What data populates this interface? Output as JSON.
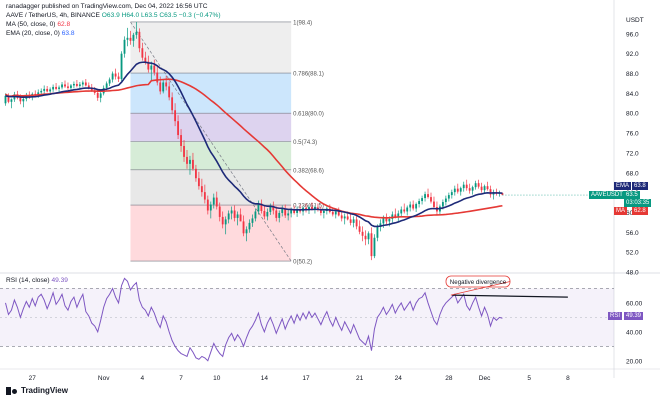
{
  "header": {
    "author_line": "ranadagger published on TradingView.com, Dec 04, 2022 16:56 UTC",
    "symbol_line_prefix": "AAVE / TetherUS, 4h, BINANCE",
    "ohlc": "O63.9  H64.0  L63.5  C63.5  −0.3 (−0.47%)",
    "ma_legend": "MA (50, close, 0)",
    "ma_value": "62.8",
    "ema_legend": "EMA (20, close, 0)",
    "ema_value": "63.8",
    "rsi_legend": "RSI (14, close)",
    "rsi_value": "49.39"
  },
  "logo_text": "TradingView",
  "price_tags": {
    "ema_label": "EMA",
    "ema_value": "63.8",
    "symbol_label": "AAVEUSDT",
    "symbol_value": "63.5",
    "countdown": "03:03:35",
    "ma_label": "MA",
    "ma_value": "62.8",
    "rsi_label": "RSI",
    "rsi_value": "49.39"
  },
  "colors": {
    "up": "#089981",
    "down": "#f23645",
    "ema": "#1e2a78",
    "ma": "#e53935",
    "rsi": "#7e57c2",
    "fib_top": "#bbdefb",
    "fib_mid1": "#d1c4e9",
    "fib_mid2": "#c8e6c9",
    "fib_bottom1": "#e0e0e0",
    "fib_bottom2": "#ffcdd2"
  },
  "chart_data": [
    {
      "type": "candlestick",
      "title": "AAVE / TetherUS, 4h, BINANCE",
      "currency": "USDT",
      "ylim": [
        48,
        100
      ],
      "y_ticks": [
        48.0,
        52.0,
        56.0,
        60.0,
        64.0,
        68.0,
        72.0,
        76.0,
        80.0,
        84.0,
        88.0,
        92.0,
        96.0
      ],
      "x_tick_labels": [
        "27",
        "Nov",
        "4",
        "7",
        "10",
        "14",
        "17",
        "21",
        "24",
        "28",
        "Dec",
        "5",
        "8"
      ],
      "x_tick_index": [
        9,
        33,
        46,
        59,
        71,
        87,
        101,
        119,
        132,
        149,
        161,
        176,
        189
      ],
      "candles": [
        [
          82,
          84,
          81.5,
          83.5
        ],
        [
          83.5,
          84,
          82,
          82.3
        ],
        [
          82.3,
          83,
          81,
          82.8
        ],
        [
          82.8,
          84.3,
          82.3,
          83.8
        ],
        [
          83.8,
          84.5,
          82.8,
          83.1
        ],
        [
          83.1,
          83.8,
          81.8,
          82.4
        ],
        [
          82.4,
          83.2,
          81.2,
          82.9
        ],
        [
          82.9,
          84.1,
          82.4,
          83.6
        ],
        [
          83.6,
          84.4,
          82.9,
          83.2
        ],
        [
          83.2,
          84.2,
          82.6,
          83.9
        ],
        [
          83.9,
          84.6,
          83.2,
          83.6
        ],
        [
          83.6,
          84.8,
          83.1,
          84.2
        ],
        [
          84.2,
          85,
          83.6,
          84.5
        ],
        [
          84.5,
          85.6,
          84,
          84.9
        ],
        [
          84.9,
          85.5,
          84.2,
          84.4
        ],
        [
          84.4,
          85.2,
          83.8,
          84.8
        ],
        [
          84.8,
          85.8,
          84.3,
          85.3
        ],
        [
          85.3,
          86.1,
          84.6,
          84.9
        ],
        [
          84.9,
          85.6,
          84.2,
          85.2
        ],
        [
          85.2,
          86.3,
          84.8,
          85.8
        ],
        [
          85.8,
          86.6,
          85.1,
          85.4
        ],
        [
          85.4,
          86.2,
          84.7,
          85.1
        ],
        [
          85.1,
          85.9,
          84.4,
          85.6
        ],
        [
          85.6,
          86.4,
          85,
          85.9
        ],
        [
          85.9,
          86.7,
          85.2,
          85.5
        ],
        [
          85.5,
          86.3,
          84.9,
          85.8
        ],
        [
          85.8,
          86.6,
          85.3,
          86.2
        ],
        [
          86.2,
          86.9,
          85.4,
          85.6
        ],
        [
          85.6,
          86.2,
          84.8,
          85.2
        ],
        [
          85.2,
          85.9,
          84.3,
          84.6
        ],
        [
          84.6,
          85.3,
          83.7,
          84.1
        ],
        [
          84.1,
          84.7,
          82.5,
          83.1
        ],
        [
          83.1,
          84.4,
          82.2,
          84
        ],
        [
          84,
          85.6,
          83.6,
          85.1
        ],
        [
          85.1,
          86.4,
          84.6,
          86
        ],
        [
          86,
          87.2,
          85.5,
          86.8
        ],
        [
          86.8,
          88.4,
          86.2,
          88
        ],
        [
          88,
          89,
          86.8,
          87.4
        ],
        [
          87.4,
          88.2,
          86.3,
          86.9
        ],
        [
          86.9,
          92.5,
          86.5,
          92
        ],
        [
          92,
          95.5,
          91.2,
          94.8
        ],
        [
          94.8,
          97.2,
          93.5,
          95.2
        ],
        [
          95.2,
          96.6,
          93.8,
          94.6
        ],
        [
          94.6,
          96.2,
          93.4,
          95.8
        ],
        [
          95.8,
          98.4,
          95,
          96.4
        ],
        [
          96.4,
          97.1,
          92.3,
          93.1
        ],
        [
          93.1,
          94.2,
          90.6,
          91.2
        ],
        [
          91.2,
          92.4,
          89.8,
          90.4
        ],
        [
          90.4,
          91.6,
          88.2,
          88.8
        ],
        [
          88.8,
          90.4,
          86.4,
          89.6
        ],
        [
          89.6,
          90.8,
          87.6,
          88.2
        ],
        [
          88.2,
          89.4,
          85.6,
          86.2
        ],
        [
          86.2,
          87.4,
          83.8,
          84.4
        ],
        [
          84.4,
          86.8,
          84,
          86.2
        ],
        [
          86.2,
          87.6,
          84.6,
          85.4
        ],
        [
          85.4,
          86.4,
          82.6,
          83.2
        ],
        [
          83.2,
          84.2,
          79.8,
          80.6
        ],
        [
          80.6,
          82,
          77.4,
          78.4
        ],
        [
          78.4,
          79.6,
          74.8,
          75.6
        ],
        [
          75.6,
          76.8,
          72.2,
          73.4
        ],
        [
          73.4,
          74.6,
          70.2,
          71.2
        ],
        [
          71.2,
          72.6,
          68.8,
          69.8
        ],
        [
          69.8,
          71.4,
          67.6,
          70.6
        ],
        [
          70.6,
          72,
          68.4,
          68.8
        ],
        [
          68.8,
          69.6,
          66.2,
          66.9
        ],
        [
          66.9,
          68.2,
          64.6,
          65.3
        ],
        [
          65.3,
          66.8,
          63.2,
          64.1
        ],
        [
          64.1,
          65.6,
          61.8,
          62.6
        ],
        [
          62.6,
          63.4,
          59.6,
          60.4
        ],
        [
          60.4,
          62.2,
          58.8,
          61.6
        ],
        [
          61.6,
          63.8,
          60.8,
          63
        ],
        [
          63,
          64.2,
          60.6,
          61.2
        ],
        [
          61.2,
          62,
          58.2,
          59.1
        ],
        [
          59.1,
          60.2,
          56.8,
          57.6
        ],
        [
          57.6,
          59.2,
          55.6,
          58.6
        ],
        [
          58.6,
          60.4,
          57.8,
          59.8
        ],
        [
          59.8,
          61.2,
          58.6,
          60.4
        ],
        [
          60.4,
          61.4,
          58.2,
          58.9
        ],
        [
          58.9,
          60.2,
          57.4,
          59.6
        ],
        [
          59.6,
          60.8,
          58.4,
          58.2
        ],
        [
          58.2,
          59.4,
          55.2,
          55.8
        ],
        [
          55.8,
          57.2,
          54.2,
          56.6
        ],
        [
          56.6,
          58.6,
          55.9,
          57.9
        ],
        [
          57.9,
          59.6,
          57.1,
          58.8
        ],
        [
          58.8,
          60.8,
          58.2,
          60.2
        ],
        [
          60.2,
          62.4,
          59.6,
          61.8
        ],
        [
          61.8,
          62.6,
          59.8,
          60.3
        ],
        [
          60.3,
          61.4,
          58.6,
          59.2
        ],
        [
          59.2,
          60.8,
          58.4,
          60.1
        ],
        [
          60.1,
          61.8,
          59.5,
          61.2
        ],
        [
          61.2,
          62.2,
          59.6,
          60.4
        ],
        [
          60.4,
          61.2,
          58.2,
          58.9
        ],
        [
          58.9,
          60.4,
          58,
          59.9
        ],
        [
          59.9,
          61.4,
          59.2,
          60.8
        ],
        [
          60.8,
          61.6,
          58.9,
          59.4
        ],
        [
          59.4,
          60.6,
          58.4,
          59.8
        ],
        [
          59.8,
          61,
          59,
          60.5
        ],
        [
          60.5,
          61.4,
          59.6,
          59.9
        ],
        [
          59.9,
          61.2,
          59.1,
          60.7
        ],
        [
          60.7,
          61.6,
          59.8,
          60.2
        ],
        [
          60.2,
          61.2,
          59.4,
          60.9
        ],
        [
          60.9,
          61.8,
          60,
          60.4
        ],
        [
          60.4,
          61.4,
          59.7,
          61.1
        ],
        [
          61.1,
          62,
          60.4,
          60.6
        ],
        [
          60.6,
          61.4,
          59.8,
          61
        ],
        [
          61,
          61.8,
          60.2,
          60.5
        ],
        [
          60.5,
          61.2,
          59.4,
          59.9
        ],
        [
          59.9,
          60.8,
          58.8,
          60.3
        ],
        [
          60.3,
          61.2,
          59.6,
          60.8
        ],
        [
          60.8,
          61.6,
          59.8,
          60.1
        ],
        [
          60.1,
          60.9,
          59.2,
          59.6
        ],
        [
          59.6,
          60.6,
          58.8,
          60.2
        ],
        [
          60.2,
          61,
          59.2,
          59.4
        ],
        [
          59.4,
          60.4,
          58.2,
          58.8
        ],
        [
          58.8,
          59.8,
          57.6,
          59.2
        ],
        [
          59.2,
          60.2,
          58.4,
          58.6
        ],
        [
          58.6,
          59.6,
          57.4,
          57.9
        ],
        [
          57.9,
          59.2,
          57,
          58.6
        ],
        [
          58.6,
          59.4,
          56.6,
          57.2
        ],
        [
          57.2,
          58.4,
          55.6,
          56.1
        ],
        [
          56.1,
          57.2,
          54.2,
          55.3
        ],
        [
          55.3,
          56.4,
          53.4,
          54.6
        ],
        [
          54.6,
          56.2,
          53.6,
          55.8
        ],
        [
          55.8,
          57,
          50.4,
          51.2
        ],
        [
          51.2,
          55.6,
          50.8,
          54.9
        ],
        [
          54.9,
          57.6,
          54.2,
          57.1
        ],
        [
          57.1,
          58.6,
          56.2,
          57.8
        ],
        [
          57.8,
          59.4,
          56.9,
          58.9
        ],
        [
          58.9,
          59.8,
          57.6,
          58.2
        ],
        [
          58.2,
          59.2,
          57.2,
          58.7
        ],
        [
          58.7,
          60.2,
          58,
          59.6
        ],
        [
          59.6,
          60.8,
          58.8,
          59.1
        ],
        [
          59.1,
          60.4,
          58.2,
          59.8
        ],
        [
          59.8,
          61.2,
          59.2,
          60.6
        ],
        [
          60.6,
          61.8,
          59.8,
          60.2
        ],
        [
          60.2,
          61.4,
          59.4,
          61
        ],
        [
          61,
          62.2,
          60.2,
          61.6
        ],
        [
          61.6,
          62.4,
          60.4,
          60.8
        ],
        [
          60.8,
          62,
          60.1,
          61.7
        ],
        [
          61.7,
          62.8,
          61,
          62.3
        ],
        [
          62.3,
          63.4,
          61.6,
          62.9
        ],
        [
          62.9,
          64.2,
          62.2,
          63.7
        ],
        [
          63.7,
          64.8,
          62.8,
          63.1
        ],
        [
          63.1,
          64,
          61.8,
          62.2
        ],
        [
          62.2,
          63.2,
          60.6,
          61.1
        ],
        [
          61.1,
          62.2,
          59.4,
          60.2
        ],
        [
          60.2,
          61.6,
          59.6,
          61.2
        ],
        [
          61.2,
          62.6,
          60.6,
          62.1
        ],
        [
          62.1,
          63.4,
          61.4,
          62.8
        ],
        [
          62.8,
          64,
          62.2,
          63.5
        ],
        [
          63.5,
          64.6,
          62.8,
          64.1
        ],
        [
          64.1,
          65.4,
          63.4,
          64.8
        ],
        [
          64.8,
          65.8,
          63.8,
          64.2
        ],
        [
          64.2,
          65.2,
          63.4,
          64.9
        ],
        [
          64.9,
          66.2,
          64.2,
          65.6
        ],
        [
          65.6,
          66.6,
          64.4,
          64.9
        ],
        [
          64.9,
          65.8,
          63.8,
          64.4
        ],
        [
          64.4,
          65.4,
          63.6,
          65.1
        ],
        [
          65.1,
          66.4,
          64.6,
          65.9
        ],
        [
          65.9,
          66.6,
          64.8,
          65.2
        ],
        [
          65.2,
          66,
          64,
          64.5
        ],
        [
          64.5,
          65.6,
          63.8,
          65.3
        ],
        [
          65.3,
          66.2,
          64.4,
          64.7
        ],
        [
          64.7,
          65.4,
          63,
          63.6
        ],
        [
          63.6,
          64.6,
          62.6,
          64.1
        ],
        [
          64.1,
          64.8,
          63.4,
          63.8
        ],
        [
          63.8,
          64.4,
          63.2,
          63.9
        ],
        [
          63.9,
          64,
          63.5,
          63.5
        ]
      ],
      "series": [
        {
          "name": "EMA (20, close, 0)"
        },
        {
          "name": "MA (50, close, 0)"
        }
      ],
      "fibonacci": {
        "levels": [
          {
            "label": "1(98.4)",
            "value": 98.4
          },
          {
            "label": "0.786(88.1)",
            "value": 88.1
          },
          {
            "label": "0.618(80.0)",
            "value": 80.0
          },
          {
            "label": "0.5(74.3)",
            "value": 74.3
          },
          {
            "label": "0.382(68.6)",
            "value": 68.6
          },
          {
            "label": "0.236(61.5)",
            "value": 61.5
          },
          {
            "label": "0(50.2)",
            "value": 50.2
          }
        ]
      }
    },
    {
      "type": "line",
      "title": "RSI (14, close)",
      "ylim": [
        15,
        80
      ],
      "y_ticks": [
        20.0,
        40.0,
        60.0
      ],
      "bands": [
        30,
        70
      ],
      "annotation": "Negative divergence",
      "series": [
        {
          "name": "RSI (14, close)",
          "values": [
            60,
            52,
            55,
            62,
            57,
            50,
            56,
            61,
            57,
            63,
            58,
            64,
            66,
            62,
            56,
            61,
            67,
            59,
            62,
            66,
            58,
            55,
            61,
            64,
            57,
            62,
            66,
            54,
            51,
            46,
            44,
            40,
            48,
            57,
            63,
            66,
            70,
            64,
            60,
            72,
            77,
            75,
            69,
            72,
            74,
            62,
            57,
            55,
            51,
            57,
            53,
            47,
            43,
            51,
            47,
            40,
            34,
            30,
            27,
            25,
            24,
            23,
            29,
            26,
            22,
            21,
            23,
            22,
            20,
            26,
            32,
            28,
            25,
            23,
            31,
            36,
            39,
            34,
            38,
            35,
            30,
            36,
            41,
            44,
            48,
            53,
            45,
            40,
            46,
            50,
            45,
            39,
            44,
            49,
            42,
            47,
            51,
            46,
            52,
            48,
            53,
            49,
            54,
            50,
            53,
            49,
            45,
            50,
            54,
            48,
            44,
            50,
            45,
            41,
            47,
            43,
            39,
            45,
            40,
            35,
            33,
            31,
            37,
            27,
            42,
            50,
            53,
            57,
            52,
            55,
            59,
            53,
            57,
            60,
            55,
            58,
            61,
            55,
            60,
            63,
            64,
            67,
            60,
            54,
            48,
            45,
            52,
            57,
            60,
            62,
            64,
            66,
            60,
            63,
            66,
            58,
            55,
            60,
            64,
            57,
            51,
            57,
            52,
            44,
            50,
            48,
            50,
            49.4
          ]
        }
      ]
    }
  ]
}
